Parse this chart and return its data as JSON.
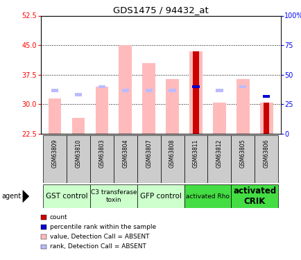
{
  "title": "GDS1475 / 94432_at",
  "samples": [
    "GSM63809",
    "GSM63810",
    "GSM63803",
    "GSM63804",
    "GSM63807",
    "GSM63808",
    "GSM63811",
    "GSM63812",
    "GSM63805",
    "GSM63806"
  ],
  "value_bars": [
    31.5,
    26.5,
    34.5,
    45.0,
    40.5,
    36.5,
    43.5,
    30.5,
    36.5,
    30.5
  ],
  "rank_bars": [
    33.5,
    32.5,
    34.5,
    33.5,
    33.5,
    33.5,
    34.5,
    33.5,
    34.5,
    32.0
  ],
  "count_bars": [
    0,
    0,
    0,
    0,
    0,
    0,
    43.5,
    0,
    0,
    30.5
  ],
  "count_rank_bars": [
    0,
    0,
    0,
    0,
    0,
    0,
    34.5,
    0,
    0,
    32.0
  ],
  "ylim_left": [
    22.5,
    52.5
  ],
  "ylim_right": [
    0,
    100
  ],
  "yticks_left": [
    22.5,
    30.0,
    37.5,
    45.0,
    52.5
  ],
  "yticks_right": [
    0,
    25,
    50,
    75,
    100
  ],
  "color_value": "#ffbbbb",
  "color_rank": "#bbbbff",
  "color_count": "#cc0000",
  "color_count_rank": "#0000cc",
  "bar_width": 0.55,
  "group_defs": [
    {
      "s": 0,
      "e": 1,
      "name": "GST control",
      "color": "#ccffcc",
      "fontsize": 7.5,
      "bold": false
    },
    {
      "s": 2,
      "e": 3,
      "name": "C3 transferase\ntoxin",
      "color": "#ccffcc",
      "fontsize": 6.5,
      "bold": false
    },
    {
      "s": 4,
      "e": 5,
      "name": "GFP control",
      "color": "#ccffcc",
      "fontsize": 7.5,
      "bold": false
    },
    {
      "s": 6,
      "e": 7,
      "name": "activated Rho",
      "color": "#44dd44",
      "fontsize": 6.5,
      "bold": false
    },
    {
      "s": 8,
      "e": 9,
      "name": "activated\nCRIK",
      "color": "#44dd44",
      "fontsize": 8.5,
      "bold": true
    }
  ],
  "sample_bg": "#cccccc",
  "legend_items": [
    {
      "color": "#cc0000",
      "label": "count"
    },
    {
      "color": "#0000cc",
      "label": "percentile rank within the sample"
    },
    {
      "color": "#ffbbbb",
      "label": "value, Detection Call = ABSENT"
    },
    {
      "color": "#bbbbff",
      "label": "rank, Detection Call = ABSENT"
    }
  ]
}
